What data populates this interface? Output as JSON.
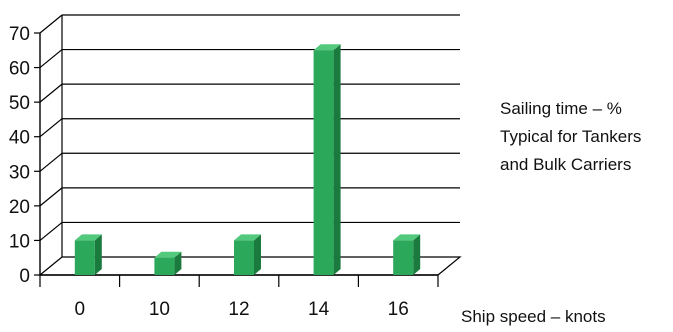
{
  "chart_data": {
    "type": "bar",
    "categories": [
      "0",
      "10",
      "12",
      "14",
      "16"
    ],
    "values": [
      10,
      5,
      10,
      65,
      10
    ],
    "title": "",
    "legend_text": [
      "Sailing time – %",
      "Typical for Tankers",
      "and Bulk Carriers"
    ],
    "xlabel": "Ship speed – knots",
    "ylabel": "",
    "ylim": [
      0,
      70
    ],
    "yticks": [
      0,
      10,
      20,
      30,
      40,
      50,
      60,
      70
    ],
    "grid": true,
    "legend_position": "right",
    "colors": {
      "bar_front": "#2ca85a",
      "bar_side": "#1b7a3e",
      "bar_top": "#52c97c",
      "grid": "#000000"
    }
  }
}
